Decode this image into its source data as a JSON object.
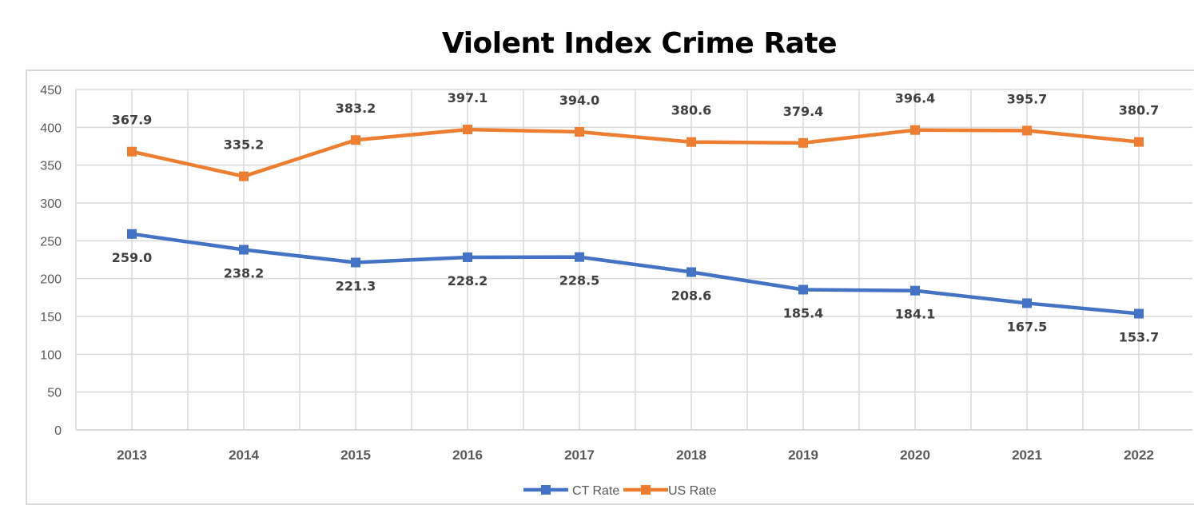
{
  "chart_data": {
    "type": "line",
    "title": "Violent Index Crime Rate",
    "categories": [
      "2013",
      "2014",
      "2015",
      "2016",
      "2017",
      "2018",
      "2019",
      "2020",
      "2021",
      "2022"
    ],
    "series": [
      {
        "name": "CT Rate",
        "color": "#4472c4",
        "values": [
          259.0,
          238.2,
          221.3,
          228.2,
          228.5,
          208.6,
          185.4,
          184.1,
          167.5,
          153.7
        ],
        "labels": [
          "259.0",
          "238.2",
          "221.3",
          "228.2",
          "228.5",
          "208.6",
          "185.4",
          "184.1",
          "167.5",
          "153.7"
        ],
        "label_position": "below"
      },
      {
        "name": "US Rate",
        "color": "#ed7d31",
        "values": [
          367.9,
          335.2,
          383.2,
          397.1,
          394.0,
          380.6,
          379.4,
          396.4,
          395.7,
          380.7
        ],
        "labels": [
          "367.9",
          "335.2",
          "383.2",
          "397.1",
          "394.0",
          "380.6",
          "379.4",
          "396.4",
          "395.7",
          "380.7"
        ],
        "label_position": "above"
      }
    ],
    "ylim": [
      0,
      450
    ],
    "yticks": [
      "0",
      "50",
      "100",
      "150",
      "200",
      "250",
      "300",
      "350",
      "400",
      "450"
    ],
    "grid": true,
    "legend": "bottom"
  }
}
